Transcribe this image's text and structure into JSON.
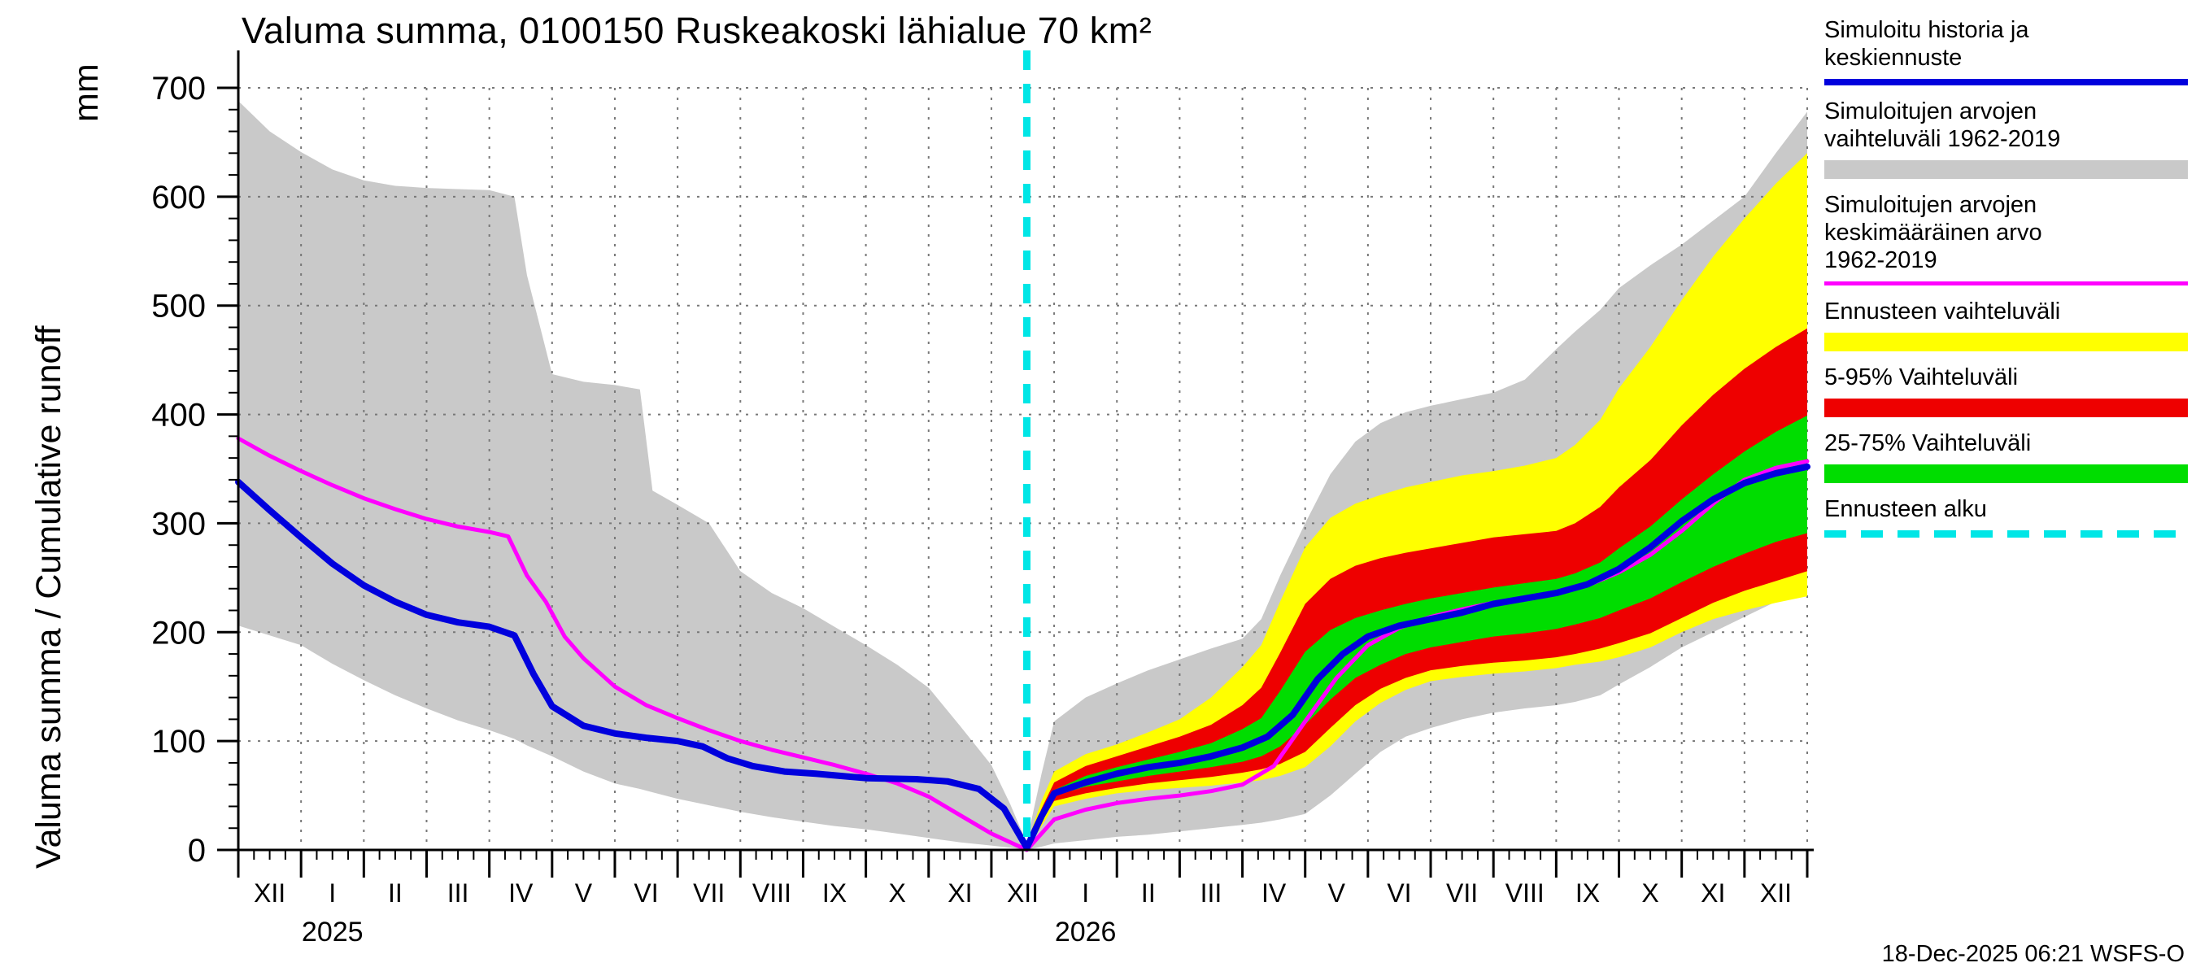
{
  "title": "Valuma summa, 0100150 Ruskeakoski lähialue 70 km²",
  "y_axis": {
    "label": "Valuma summa / Cumulative runoff",
    "unit": "mm",
    "ticks": [
      0,
      100,
      200,
      300,
      400,
      500,
      600,
      700
    ],
    "min": 0,
    "max": 700
  },
  "x_axis": {
    "month_labels": [
      "XII",
      "I",
      "II",
      "III",
      "IV",
      "V",
      "VI",
      "VII",
      "VIII",
      "IX",
      "X",
      "XI",
      "XII",
      "I",
      "II",
      "III",
      "IV",
      "V",
      "VI",
      "VII",
      "VIII",
      "IX",
      "X",
      "XI",
      "XII"
    ],
    "years": [
      {
        "label": "2025",
        "month_index": 1
      },
      {
        "label": "2026",
        "month_index": 13
      }
    ]
  },
  "footer": {
    "timestamp": "18-Dec-2025 06:21 WSFS-O"
  },
  "legend": {
    "items": [
      {
        "label": "Simuloitu historia ja\nkeskiennuste",
        "swatch": "line",
        "color": "#0000dd"
      },
      {
        "label": "Simuloitujen arvojen\nvaihteluväli 1962-2019",
        "swatch": "band",
        "color": "#c9c9c9"
      },
      {
        "label": "Simuloitujen arvojen\nkeskimääräinen arvo\n1962-2019",
        "swatch": "line-thin",
        "color": "#ff00ff"
      },
      {
        "label": "Ennusteen vaihteluväli",
        "swatch": "band",
        "color": "#ffff00"
      },
      {
        "label": "5-95% Vaihteluväli",
        "swatch": "band",
        "color": "#ee0000"
      },
      {
        "label": "25-75% Vaihteluväli",
        "swatch": "band",
        "color": "#00dd00"
      },
      {
        "label": "Ennusteen alku",
        "swatch": "dashed",
        "color": "#00e6e6"
      }
    ]
  },
  "chart_data": {
    "type": "line",
    "title": "Valuma summa, 0100150 Ruskeakoski lähialue 70 km²",
    "ylabel": "Valuma summa / Cumulative runoff (mm)",
    "ylim": [
      0,
      700
    ],
    "x_unit": "month index along axis (0 = first XII tick, 25 = last XII tick)",
    "grid": true,
    "legend_position": "right",
    "forecast_start_x": 12.565,
    "series": [
      {
        "name": "hist-range",
        "label": "Simuloitujen arvojen vaihteluväli 1962-2019",
        "kind": "band",
        "color": "#c9c9c9",
        "x": [
          0,
          0.5,
          1,
          1.5,
          2,
          2.5,
          3,
          3.5,
          4,
          4.4,
          4.6,
          5,
          5.5,
          6,
          6.4,
          6.6,
          7,
          7.5,
          8,
          8.5,
          9,
          9.5,
          10,
          10.5,
          11,
          11.5,
          12,
          12.3,
          12.565
        ],
        "upper": [
          688,
          660,
          641,
          625,
          615,
          610,
          608,
          607,
          606,
          600,
          528,
          437,
          430,
          427,
          423,
          330,
          317,
          300,
          256,
          236,
          222,
          205,
          188,
          170,
          149,
          114,
          78,
          42,
          6
        ],
        "lower": [
          206,
          197,
          188,
          171,
          156,
          142,
          130,
          119,
          110,
          102,
          96,
          86,
          72,
          61,
          56,
          53,
          47,
          41,
          35,
          30,
          26,
          22,
          19,
          15,
          11,
          7,
          4,
          2,
          0
        ]
      },
      {
        "name": "forecast-range-outer",
        "label": "Simuloitujen arvojen vaihteluväli 1962-2019",
        "kind": "band",
        "color": "#c9c9c9",
        "x": [
          12.565,
          12.8,
          13,
          13.5,
          14,
          14.5,
          15,
          15.5,
          16,
          16.3,
          16.6,
          17,
          17.4,
          17.8,
          18.2,
          18.6,
          19,
          19.5,
          20,
          20.5,
          21,
          21.3,
          21.7,
          22,
          22.5,
          23,
          23.5,
          24,
          24.5,
          25
        ],
        "upper": [
          8,
          70,
          118,
          140,
          153,
          165,
          175,
          185,
          194,
          212,
          252,
          300,
          345,
          375,
          392,
          402,
          408,
          414,
          420,
          432,
          460,
          476,
          496,
          516,
          537,
          556,
          578,
          600,
          640,
          678
        ],
        "lower": [
          0,
          3,
          6,
          9,
          12,
          14,
          17,
          20,
          23,
          25,
          28,
          33,
          50,
          70,
          90,
          104,
          112,
          120,
          126,
          130,
          133,
          136,
          142,
          152,
          168,
          186,
          200,
          214,
          228,
          242
        ]
      },
      {
        "name": "forecast-range-total",
        "label": "Ennusteen vaihteluväli",
        "kind": "band",
        "color": "#ffff00",
        "x": [
          12.565,
          12.8,
          13,
          13.5,
          14,
          14.5,
          15,
          15.5,
          16,
          16.3,
          16.6,
          17,
          17.4,
          17.8,
          18.2,
          18.6,
          19,
          19.5,
          20,
          20.5,
          21,
          21.3,
          21.7,
          22,
          22.5,
          23,
          23.5,
          24,
          24.5,
          25
        ],
        "upper": [
          6,
          45,
          72,
          88,
          97,
          108,
          120,
          140,
          168,
          188,
          228,
          278,
          305,
          318,
          326,
          333,
          338,
          344,
          348,
          353,
          360,
          372,
          395,
          424,
          462,
          505,
          545,
          580,
          612,
          640
        ],
        "lower": [
          0,
          22,
          40,
          47,
          52,
          55,
          57,
          59,
          62,
          64,
          68,
          76,
          95,
          118,
          135,
          147,
          155,
          159,
          162,
          164,
          167,
          170,
          173,
          177,
          186,
          200,
          212,
          220,
          227,
          233
        ]
      },
      {
        "name": "forecast-range-5-95",
        "label": "5-95% Vaihteluväli",
        "kind": "band",
        "color": "#ee0000",
        "x": [
          12.565,
          12.8,
          13,
          13.5,
          14,
          14.5,
          15,
          15.5,
          16,
          16.3,
          16.6,
          17,
          17.4,
          17.8,
          18.2,
          18.6,
          19,
          19.5,
          20,
          20.5,
          21,
          21.3,
          21.7,
          22,
          22.5,
          23,
          23.5,
          24,
          24.5,
          25
        ],
        "upper": [
          4,
          38,
          62,
          77,
          86,
          95,
          104,
          115,
          133,
          149,
          181,
          226,
          249,
          261,
          268,
          273,
          277,
          282,
          287,
          290,
          293,
          300,
          315,
          333,
          358,
          390,
          418,
          442,
          462,
          479
        ],
        "lower": [
          0,
          26,
          45,
          52,
          57,
          61,
          64,
          67,
          71,
          74,
          79,
          90,
          112,
          133,
          148,
          158,
          165,
          169,
          172,
          174,
          177,
          180,
          185,
          190,
          199,
          213,
          227,
          238,
          247,
          256
        ]
      },
      {
        "name": "forecast-range-25-75",
        "label": "25-75% Vaihteluväli",
        "kind": "band",
        "color": "#00dd00",
        "x": [
          12.565,
          12.8,
          13,
          13.5,
          14,
          14.5,
          15,
          15.5,
          16,
          16.3,
          16.6,
          17,
          17.4,
          17.8,
          18.2,
          18.6,
          19,
          19.5,
          20,
          20.5,
          21,
          21.3,
          21.7,
          22,
          22.5,
          23,
          23.5,
          24,
          24.5,
          25
        ],
        "upper": [
          3,
          33,
          55,
          68,
          76,
          83,
          90,
          98,
          111,
          121,
          146,
          182,
          202,
          213,
          220,
          226,
          231,
          236,
          241,
          245,
          249,
          254,
          264,
          277,
          297,
          322,
          345,
          366,
          384,
          399
        ],
        "lower": [
          1,
          29,
          50,
          58,
          63,
          68,
          72,
          76,
          81,
          86,
          95,
          115,
          138,
          158,
          170,
          180,
          186,
          191,
          196,
          199,
          203,
          207,
          213,
          220,
          231,
          246,
          260,
          272,
          283,
          291
        ]
      },
      {
        "name": "hist-mean",
        "label": "Simuloitujen arvojen keskimääräinen arvo 1962-2019",
        "kind": "line",
        "color": "#ff00ff",
        "width": 5,
        "x": [
          0,
          0.5,
          1,
          1.5,
          2,
          2.5,
          3,
          3.5,
          4,
          4.3,
          4.6,
          4.9,
          5.2,
          5.5,
          6,
          6.5,
          7,
          7.5,
          8,
          8.5,
          9,
          9.5,
          10,
          10.5,
          11,
          11.5,
          12,
          12.565,
          13,
          13.5,
          14,
          14.5,
          15,
          15.5,
          16,
          16.5,
          17,
          17.5,
          18,
          18.5,
          19,
          19.5,
          20,
          20.5,
          21,
          21.5,
          22,
          22.5,
          23,
          23.5,
          24,
          24.5,
          25
        ],
        "y": [
          378,
          362,
          348,
          335,
          323,
          313,
          304,
          297,
          292,
          288,
          252,
          228,
          196,
          176,
          150,
          133,
          121,
          110,
          100,
          92,
          85,
          78,
          70,
          61,
          49,
          32,
          15,
          0,
          28,
          37,
          43,
          47,
          50,
          54,
          60,
          77,
          118,
          158,
          188,
          204,
          214,
          221,
          227,
          231,
          236,
          243,
          255,
          271,
          293,
          318,
          340,
          351,
          357
        ]
      },
      {
        "name": "sim-history-mean-forecast",
        "label": "Simuloitu historia ja keskiennuste",
        "kind": "line",
        "color": "#0000dd",
        "width": 8,
        "x": [
          0,
          0.5,
          1,
          1.5,
          2,
          2.5,
          3,
          3.5,
          4,
          4.4,
          4.7,
          5,
          5.5,
          6,
          6.5,
          7,
          7.4,
          7.8,
          8.2,
          8.7,
          9.2,
          10,
          10.8,
          11.3,
          11.8,
          12.2,
          12.565,
          12.8,
          13,
          13.5,
          14,
          14.5,
          15,
          15.5,
          16,
          16.4,
          16.8,
          17.2,
          17.6,
          18,
          18.5,
          19,
          19.5,
          20,
          20.5,
          21,
          21.5,
          22,
          22.5,
          23,
          23.5,
          24,
          24.5,
          25
        ],
        "y": [
          338,
          312,
          287,
          263,
          243,
          228,
          216,
          209,
          205,
          197,
          162,
          132,
          114,
          107,
          103,
          100,
          95,
          84,
          77,
          72,
          70,
          66,
          65,
          63,
          56,
          38,
          2,
          31,
          52,
          62,
          70,
          76,
          80,
          86,
          94,
          104,
          124,
          157,
          180,
          196,
          206,
          212,
          218,
          226,
          231,
          236,
          244,
          258,
          278,
          302,
          322,
          337,
          346,
          352
        ]
      },
      {
        "name": "forecast-start",
        "label": "Ennusteen alku",
        "kind": "vline",
        "color": "#00e6e6",
        "width": 9,
        "dash": [
          24,
          17
        ],
        "x": 12.565
      }
    ]
  }
}
